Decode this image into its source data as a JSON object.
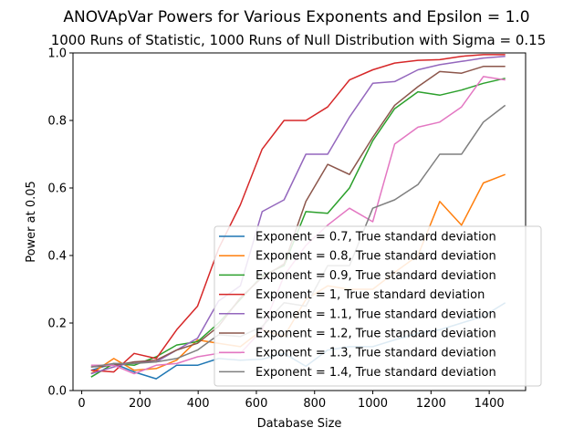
{
  "chart_data": {
    "type": "line",
    "title": "ANOVApVar Powers for Various Exponents and Epsilon = 1.0",
    "subtitle": "1000 Runs of Statistic, 1000 Runs of Null Distribution with Sigma = 0.15",
    "xlabel": "Database Size",
    "ylabel": "Power at 0.05",
    "xlim": [
      -30,
      1525
    ],
    "ylim": [
      0,
      1.0
    ],
    "xticks": [
      0,
      200,
      400,
      600,
      800,
      1000,
      1200,
      1400
    ],
    "yticks": [
      0.0,
      0.2,
      0.4,
      0.6,
      0.8,
      1.0
    ],
    "grid": false,
    "legend": "lower-right",
    "x": [
      32,
      110,
      180,
      256,
      326,
      398,
      470,
      545,
      620,
      695,
      770,
      845,
      920,
      1000,
      1075,
      1155,
      1230,
      1305,
      1380,
      1455
    ],
    "series": [
      {
        "name": "Exponent = 0.7, True standard deviation",
        "color": "#1f77b4",
        "values": [
          0.06,
          0.08,
          0.055,
          0.035,
          0.075,
          0.075,
          0.095,
          0.09,
          0.093,
          0.11,
          0.072,
          0.12,
          0.13,
          0.13,
          0.15,
          0.17,
          0.18,
          0.2,
          0.22,
          0.26
        ]
      },
      {
        "name": "Exponent = 0.8, True standard deviation",
        "color": "#ff7f0e",
        "values": [
          0.05,
          0.095,
          0.06,
          0.065,
          0.09,
          0.15,
          0.14,
          0.13,
          0.18,
          0.16,
          0.27,
          0.31,
          0.3,
          0.3,
          0.35,
          0.4,
          0.56,
          0.49,
          0.615,
          0.64
        ]
      },
      {
        "name": "Exponent = 0.9, True standard deviation",
        "color": "#2ca02c",
        "values": [
          0.04,
          0.08,
          0.075,
          0.1,
          0.135,
          0.145,
          0.2,
          0.27,
          0.34,
          0.37,
          0.53,
          0.525,
          0.6,
          0.74,
          0.835,
          0.885,
          0.875,
          0.89,
          0.91,
          0.925
        ]
      },
      {
        "name": "Exponent = 1, True standard deviation",
        "color": "#d62728",
        "values": [
          0.06,
          0.055,
          0.11,
          0.095,
          0.18,
          0.25,
          0.42,
          0.55,
          0.715,
          0.8,
          0.8,
          0.84,
          0.92,
          0.95,
          0.97,
          0.978,
          0.98,
          0.99,
          0.995,
          0.995
        ]
      },
      {
        "name": "Exponent = 1.1, True standard deviation",
        "color": "#9467bd",
        "values": [
          0.05,
          0.07,
          0.085,
          0.085,
          0.12,
          0.155,
          0.265,
          0.31,
          0.53,
          0.565,
          0.7,
          0.7,
          0.81,
          0.91,
          0.915,
          0.95,
          0.965,
          0.975,
          0.985,
          0.99
        ]
      },
      {
        "name": "Exponent = 1.2, True standard deviation",
        "color": "#8c564b",
        "values": [
          0.07,
          0.075,
          0.085,
          0.09,
          0.12,
          0.14,
          0.19,
          0.275,
          0.335,
          0.375,
          0.56,
          0.67,
          0.64,
          0.75,
          0.845,
          0.9,
          0.945,
          0.94,
          0.96,
          0.96
        ]
      },
      {
        "name": "Exponent = 1.3, True standard deviation",
        "color": "#e377c2",
        "values": [
          0.075,
          0.075,
          0.05,
          0.075,
          0.08,
          0.1,
          0.11,
          0.11,
          0.18,
          0.34,
          0.43,
          0.49,
          0.54,
          0.5,
          0.73,
          0.78,
          0.795,
          0.84,
          0.93,
          0.92
        ]
      },
      {
        "name": "Exponent = 1.4, True standard deviation",
        "color": "#7f7f7f",
        "values": [
          0.07,
          0.08,
          0.08,
          0.085,
          0.095,
          0.12,
          0.165,
          0.16,
          0.19,
          0.26,
          0.25,
          0.37,
          0.37,
          0.54,
          0.565,
          0.61,
          0.7,
          0.7,
          0.795,
          0.845
        ]
      }
    ]
  }
}
